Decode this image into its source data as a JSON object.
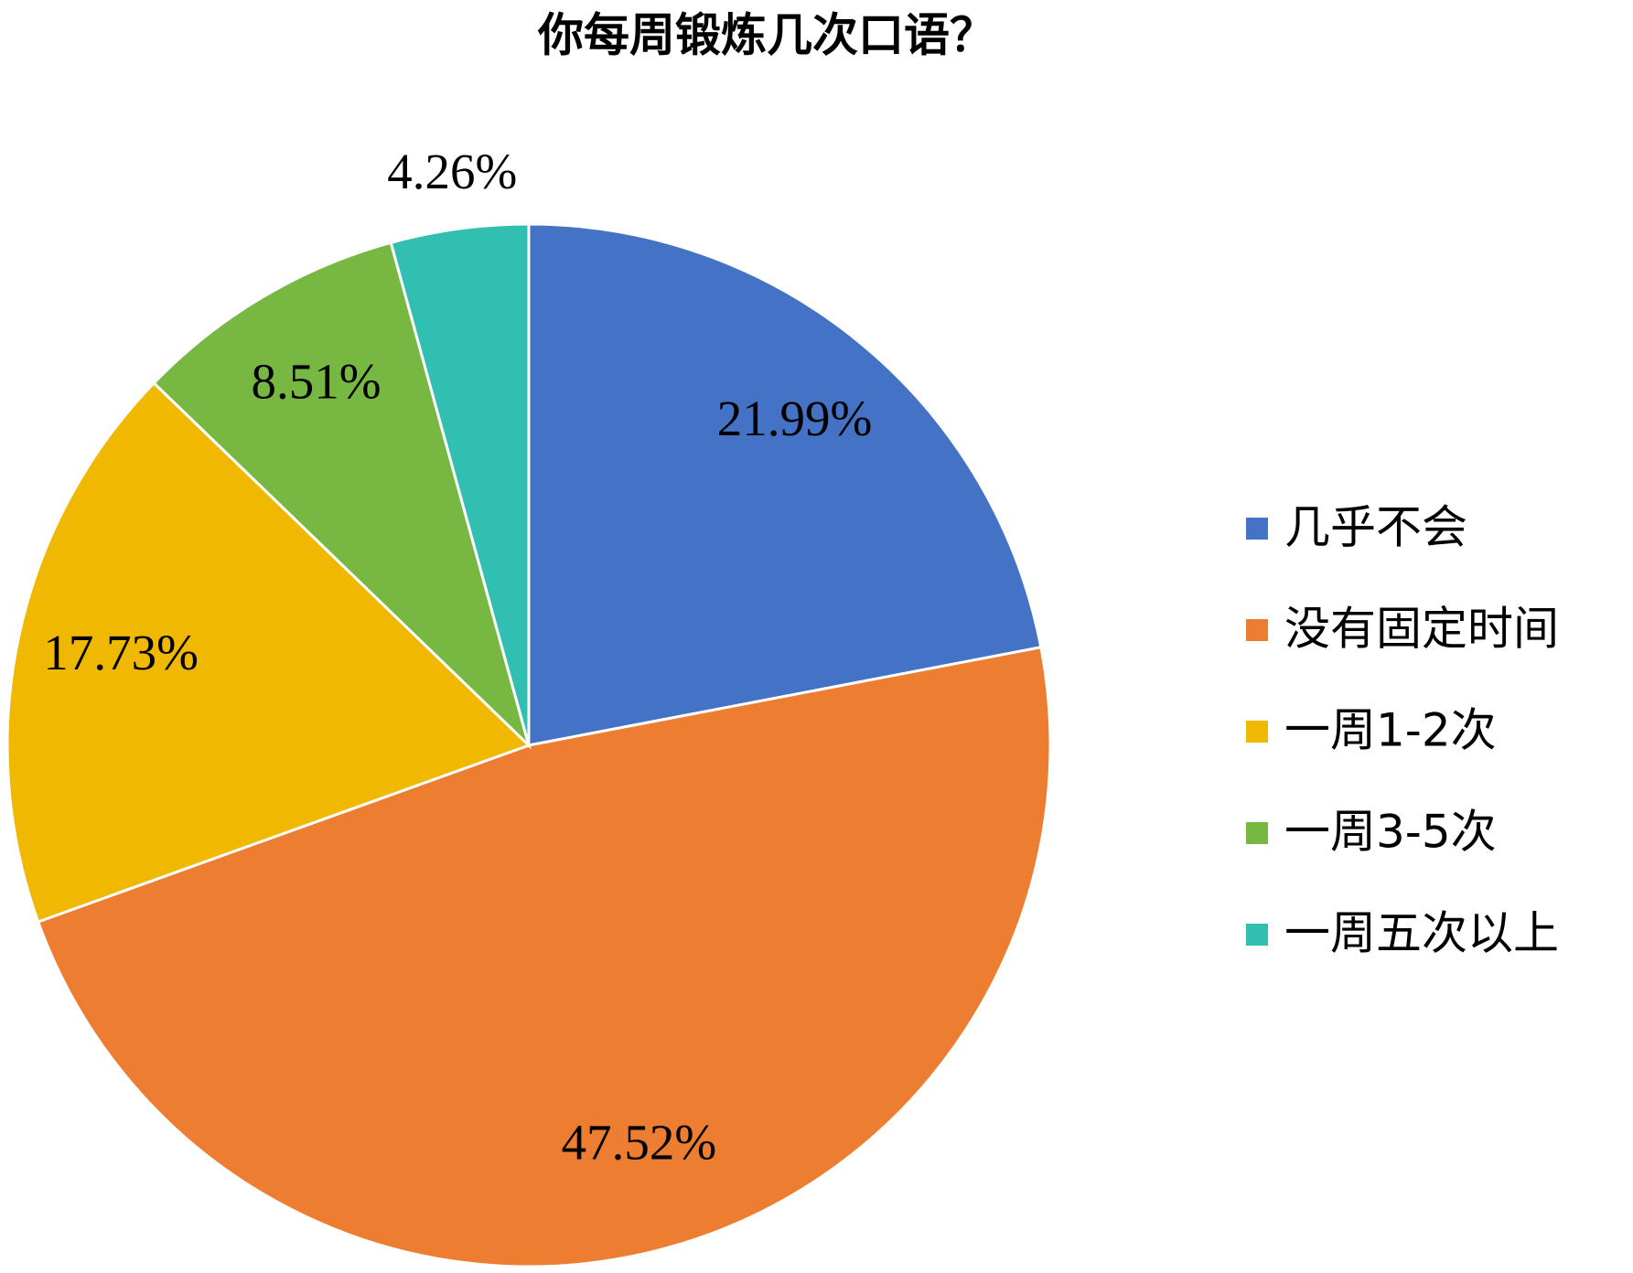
{
  "chart_data": {
    "type": "pie",
    "title": "你每周锻炼几次口语？",
    "categories": [
      "几乎不会",
      "没有固定时间",
      "一周1-2次",
      "一周3-5次",
      "一周五次以上"
    ],
    "values": [
      21.99,
      47.52,
      17.73,
      8.51,
      4.26
    ],
    "value_labels": [
      "21.99%",
      "47.52%",
      "17.73%",
      "8.51%",
      "4.26%"
    ],
    "colors": [
      "#4472c4",
      "#ed7d31",
      "#f0b800",
      "#77b843",
      "#30bfb1"
    ],
    "legend": "right"
  }
}
